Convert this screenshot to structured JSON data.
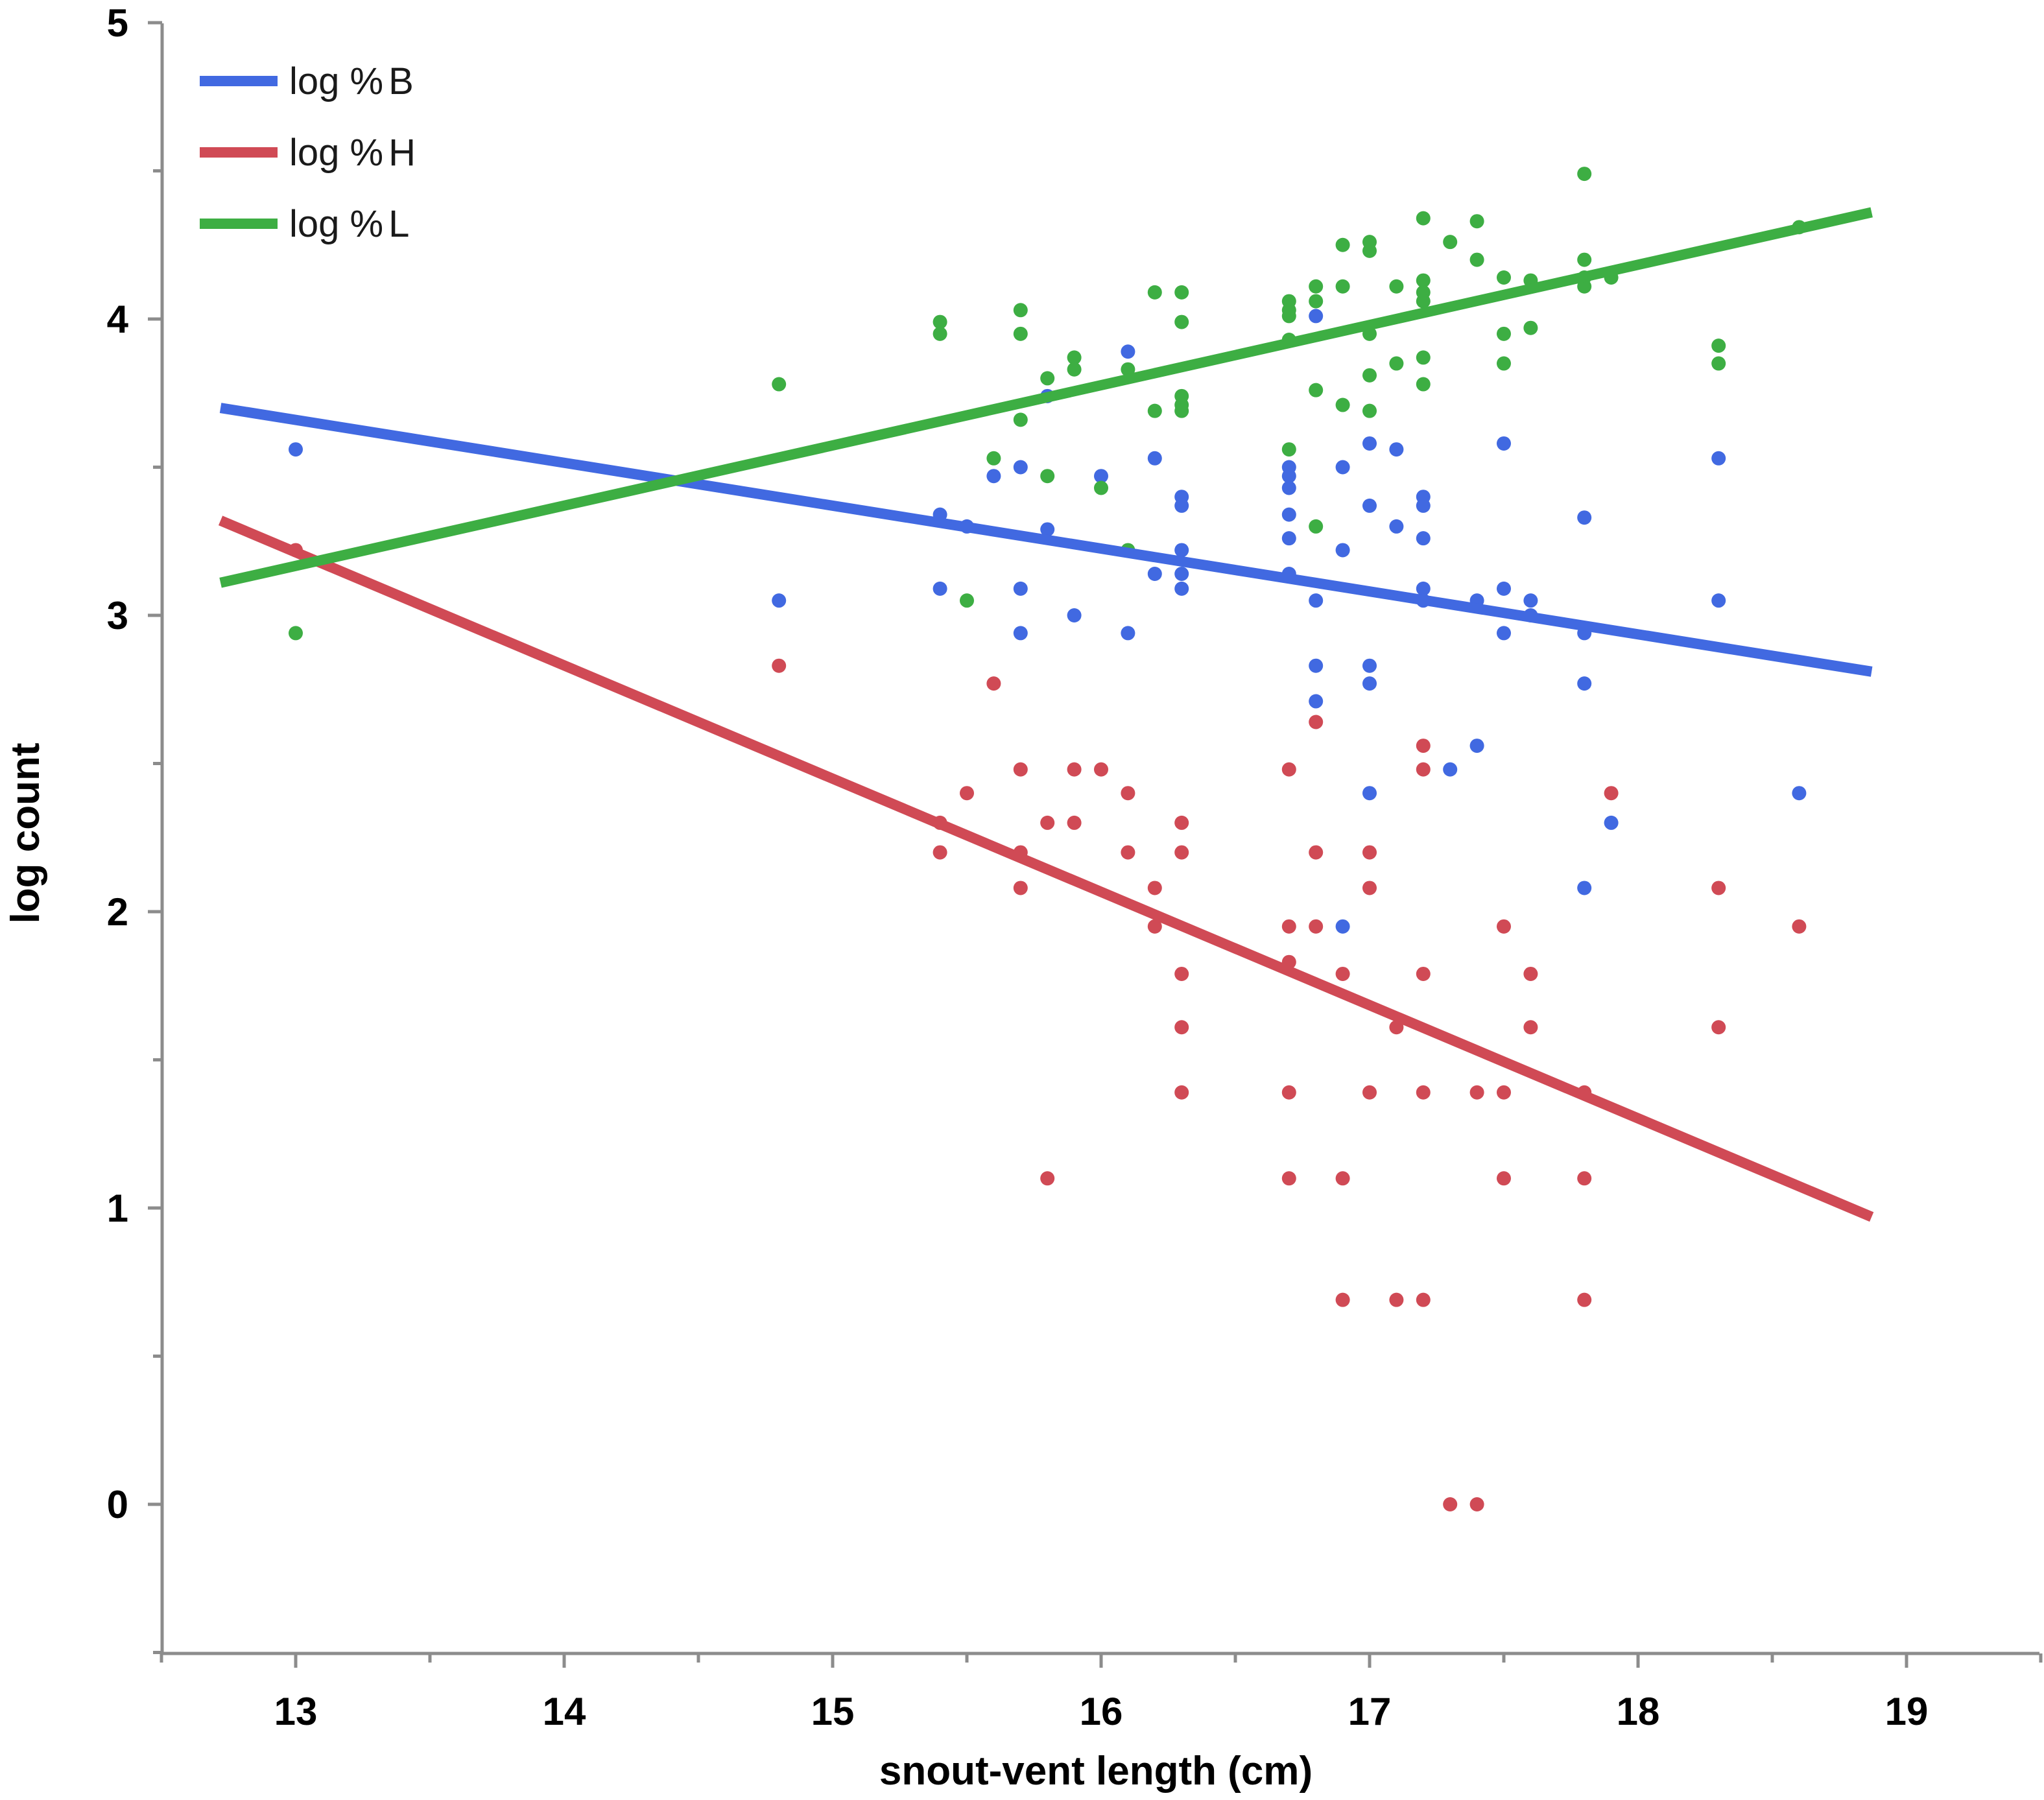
{
  "chart_data": {
    "type": "scatter",
    "title": "",
    "xlabel": "snout-vent length (cm)",
    "ylabel": "log count",
    "xlim": [
      12.5,
      19.5
    ],
    "ylim": [
      -0.5,
      5
    ],
    "xticks": [
      13,
      14,
      15,
      16,
      17,
      18,
      19
    ],
    "yticks": [
      0,
      1,
      2,
      3,
      4,
      5
    ],
    "xminor_step": 0.5,
    "yminor_step": 0.5,
    "grid": false,
    "legend_position": "top-left",
    "series": [
      {
        "name": "log %B",
        "label_prefix": "log %",
        "label_suffix": "B",
        "color": "#4169E1",
        "fit": {
          "x": [
            12.72,
            18.87
          ],
          "y": [
            3.7,
            2.81
          ]
        },
        "points": [
          [
            13.0,
            3.56
          ],
          [
            14.8,
            3.05
          ],
          [
            15.4,
            3.34
          ],
          [
            15.4,
            3.09
          ],
          [
            15.5,
            3.3
          ],
          [
            15.6,
            3.47
          ],
          [
            15.7,
            3.5
          ],
          [
            15.7,
            3.09
          ],
          [
            15.7,
            2.94
          ],
          [
            15.8,
            3.74
          ],
          [
            15.8,
            3.29
          ],
          [
            15.9,
            3.0
          ],
          [
            16.0,
            3.47
          ],
          [
            16.1,
            3.89
          ],
          [
            16.1,
            2.94
          ],
          [
            16.2,
            3.53
          ],
          [
            16.2,
            3.14
          ],
          [
            16.3,
            3.4
          ],
          [
            16.3,
            3.37
          ],
          [
            16.3,
            3.22
          ],
          [
            16.3,
            3.14
          ],
          [
            16.3,
            3.09
          ],
          [
            16.7,
            3.5
          ],
          [
            16.7,
            3.47
          ],
          [
            16.7,
            3.43
          ],
          [
            16.7,
            3.34
          ],
          [
            16.7,
            3.26
          ],
          [
            16.7,
            3.14
          ],
          [
            16.8,
            4.01
          ],
          [
            16.8,
            3.05
          ],
          [
            16.8,
            2.83
          ],
          [
            16.8,
            2.71
          ],
          [
            16.9,
            3.5
          ],
          [
            16.9,
            3.22
          ],
          [
            16.9,
            1.95
          ],
          [
            17.0,
            3.58
          ],
          [
            17.0,
            3.37
          ],
          [
            17.0,
            2.83
          ],
          [
            17.0,
            2.77
          ],
          [
            17.0,
            2.4
          ],
          [
            17.1,
            3.56
          ],
          [
            17.1,
            3.3
          ],
          [
            17.2,
            3.4
          ],
          [
            17.2,
            3.37
          ],
          [
            17.2,
            3.26
          ],
          [
            17.2,
            3.09
          ],
          [
            17.2,
            3.05
          ],
          [
            17.3,
            2.48
          ],
          [
            17.4,
            3.05
          ],
          [
            17.4,
            2.56
          ],
          [
            17.5,
            3.58
          ],
          [
            17.5,
            3.09
          ],
          [
            17.5,
            2.94
          ],
          [
            17.6,
            3.05
          ],
          [
            17.6,
            3.0
          ],
          [
            17.8,
            3.33
          ],
          [
            17.8,
            2.94
          ],
          [
            17.8,
            2.77
          ],
          [
            17.8,
            2.08
          ],
          [
            17.9,
            2.3
          ],
          [
            18.3,
            3.53
          ],
          [
            18.3,
            3.05
          ],
          [
            18.6,
            2.4
          ]
        ]
      },
      {
        "name": "log %H",
        "label_prefix": "log %",
        "label_suffix": "H",
        "color": "#D04A55",
        "fit": {
          "x": [
            12.72,
            18.87
          ],
          "y": [
            3.32,
            0.97
          ]
        },
        "points": [
          [
            13.0,
            3.22
          ],
          [
            14.8,
            2.83
          ],
          [
            15.4,
            2.3
          ],
          [
            15.4,
            2.2
          ],
          [
            15.5,
            2.4
          ],
          [
            15.6,
            2.77
          ],
          [
            15.7,
            2.48
          ],
          [
            15.7,
            2.2
          ],
          [
            15.7,
            2.08
          ],
          [
            15.8,
            2.3
          ],
          [
            15.8,
            1.1
          ],
          [
            15.9,
            2.48
          ],
          [
            15.9,
            2.3
          ],
          [
            16.0,
            2.48
          ],
          [
            16.1,
            2.4
          ],
          [
            16.1,
            2.2
          ],
          [
            16.2,
            2.08
          ],
          [
            16.2,
            1.95
          ],
          [
            16.3,
            2.3
          ],
          [
            16.3,
            2.2
          ],
          [
            16.3,
            1.79
          ],
          [
            16.3,
            1.61
          ],
          [
            16.3,
            1.39
          ],
          [
            16.7,
            2.48
          ],
          [
            16.7,
            1.95
          ],
          [
            16.7,
            1.83
          ],
          [
            16.7,
            1.39
          ],
          [
            16.7,
            1.1
          ],
          [
            16.8,
            2.64
          ],
          [
            16.8,
            2.2
          ],
          [
            16.8,
            1.95
          ],
          [
            16.9,
            1.79
          ],
          [
            16.9,
            1.1
          ],
          [
            16.9,
            0.69
          ],
          [
            17.0,
            2.2
          ],
          [
            17.0,
            2.08
          ],
          [
            17.0,
            1.39
          ],
          [
            17.1,
            1.61
          ],
          [
            17.1,
            0.69
          ],
          [
            17.2,
            2.56
          ],
          [
            17.2,
            2.48
          ],
          [
            17.2,
            1.79
          ],
          [
            17.2,
            1.39
          ],
          [
            17.2,
            0.69
          ],
          [
            17.3,
            0.0
          ],
          [
            17.4,
            1.39
          ],
          [
            17.4,
            0.0
          ],
          [
            17.5,
            1.95
          ],
          [
            17.5,
            1.39
          ],
          [
            17.5,
            1.1
          ],
          [
            17.6,
            1.79
          ],
          [
            17.6,
            1.61
          ],
          [
            17.8,
            1.39
          ],
          [
            17.8,
            1.1
          ],
          [
            17.8,
            0.69
          ],
          [
            17.9,
            2.4
          ],
          [
            18.3,
            2.08
          ],
          [
            18.3,
            1.61
          ],
          [
            18.6,
            1.95
          ]
        ]
      },
      {
        "name": "log %L",
        "label_prefix": "log %",
        "label_suffix": "L",
        "color": "#3DAE43",
        "fit": {
          "x": [
            12.72,
            18.87
          ],
          "y": [
            3.11,
            4.36
          ]
        },
        "points": [
          [
            13.0,
            2.94
          ],
          [
            14.8,
            3.78
          ],
          [
            15.4,
            3.99
          ],
          [
            15.4,
            3.95
          ],
          [
            15.5,
            3.05
          ],
          [
            15.6,
            3.53
          ],
          [
            15.7,
            4.03
          ],
          [
            15.7,
            3.95
          ],
          [
            15.7,
            3.66
          ],
          [
            15.8,
            3.8
          ],
          [
            15.8,
            3.47
          ],
          [
            15.9,
            3.87
          ],
          [
            15.9,
            3.83
          ],
          [
            16.0,
            3.43
          ],
          [
            16.1,
            3.83
          ],
          [
            16.1,
            3.22
          ],
          [
            16.2,
            4.09
          ],
          [
            16.2,
            3.69
          ],
          [
            16.3,
            4.09
          ],
          [
            16.3,
            3.99
          ],
          [
            16.3,
            3.74
          ],
          [
            16.3,
            3.71
          ],
          [
            16.3,
            3.69
          ],
          [
            16.7,
            4.06
          ],
          [
            16.7,
            4.03
          ],
          [
            16.7,
            4.01
          ],
          [
            16.7,
            3.93
          ],
          [
            16.7,
            3.56
          ],
          [
            16.8,
            4.11
          ],
          [
            16.8,
            4.06
          ],
          [
            16.8,
            3.76
          ],
          [
            16.8,
            3.3
          ],
          [
            16.9,
            4.25
          ],
          [
            16.9,
            4.11
          ],
          [
            16.9,
            3.71
          ],
          [
            17.0,
            4.26
          ],
          [
            17.0,
            4.23
          ],
          [
            17.0,
            3.95
          ],
          [
            17.0,
            3.81
          ],
          [
            17.0,
            3.69
          ],
          [
            17.1,
            4.11
          ],
          [
            17.1,
            3.85
          ],
          [
            17.2,
            4.34
          ],
          [
            17.2,
            4.13
          ],
          [
            17.2,
            4.09
          ],
          [
            17.2,
            4.06
          ],
          [
            17.2,
            3.87
          ],
          [
            17.2,
            3.78
          ],
          [
            17.3,
            4.26
          ],
          [
            17.4,
            4.33
          ],
          [
            17.4,
            4.2
          ],
          [
            17.5,
            4.14
          ],
          [
            17.5,
            3.95
          ],
          [
            17.5,
            3.85
          ],
          [
            17.6,
            4.13
          ],
          [
            17.6,
            3.97
          ],
          [
            17.8,
            4.49
          ],
          [
            17.8,
            4.2
          ],
          [
            17.8,
            4.14
          ],
          [
            17.8,
            4.11
          ],
          [
            17.9,
            4.14
          ],
          [
            18.3,
            3.91
          ],
          [
            18.3,
            3.85
          ],
          [
            18.6,
            4.31
          ]
        ]
      }
    ]
  }
}
